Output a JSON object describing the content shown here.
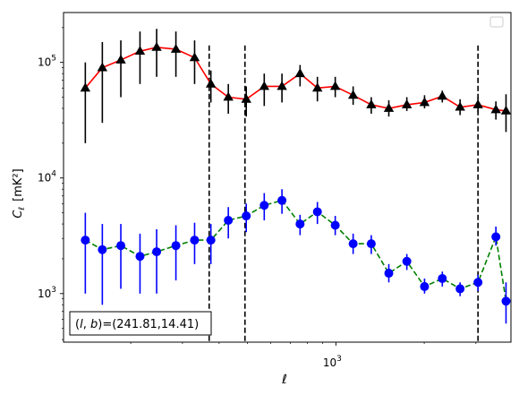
{
  "chart_data": {
    "type": "scatter",
    "title": "",
    "xlabel": "ℓ",
    "ylabel_main": "C",
    "ylabel_sub": "ℓ",
    "ylabel_unit": "[mK²]",
    "xscale": "log",
    "yscale": "log",
    "xlim": [
      118,
      3950
    ],
    "ylim": [
      380,
      270000
    ],
    "x_tick_label": "10",
    "x_tick_exp": "3",
    "y_tick_labels": [
      {
        "value": 1000,
        "base": "10",
        "exp": "3"
      },
      {
        "value": 10000,
        "base": "10",
        "exp": "4"
      },
      {
        "value": 100000,
        "base": "10",
        "exp": "5"
      }
    ],
    "legend": {
      "placement": "top-right",
      "entries": []
    },
    "vlines": [
      370,
      490,
      3050
    ],
    "annotation_text": "(l, b)=(241.81,14.41)",
    "annotation_parts": {
      "open": "(",
      "l": "l",
      "sep": ", ",
      "b": "b",
      "close": ")",
      "rest": "=(241.81,14.41)"
    },
    "colors": {
      "upper_line": "#ff0000",
      "upper_marker": "#000000",
      "lower_line": "#008000",
      "lower_marker": "#0000ff"
    },
    "series": [
      {
        "line_style": "solid",
        "marker": "triangle",
        "points": [
          {
            "x": 140,
            "y": 60000,
            "lo": 20000,
            "hi": 100000
          },
          {
            "x": 160,
            "y": 90000,
            "lo": 30000,
            "hi": 150000
          },
          {
            "x": 185,
            "y": 105000,
            "lo": 50000,
            "hi": 155000
          },
          {
            "x": 215,
            "y": 125000,
            "lo": 65000,
            "hi": 185000
          },
          {
            "x": 245,
            "y": 135000,
            "lo": 75000,
            "hi": 195000
          },
          {
            "x": 285,
            "y": 130000,
            "lo": 75000,
            "hi": 185000
          },
          {
            "x": 330,
            "y": 110000,
            "lo": 65000,
            "hi": 155000
          },
          {
            "x": 375,
            "y": 65000,
            "lo": 45000,
            "hi": 85000
          },
          {
            "x": 430,
            "y": 50000,
            "lo": 36000,
            "hi": 65000
          },
          {
            "x": 495,
            "y": 48000,
            "lo": 34000,
            "hi": 62000
          },
          {
            "x": 570,
            "y": 62000,
            "lo": 42000,
            "hi": 80000
          },
          {
            "x": 655,
            "y": 62000,
            "lo": 45000,
            "hi": 80000
          },
          {
            "x": 755,
            "y": 80000,
            "lo": 62000,
            "hi": 95000
          },
          {
            "x": 865,
            "y": 60000,
            "lo": 46000,
            "hi": 75000
          },
          {
            "x": 995,
            "y": 62000,
            "lo": 50000,
            "hi": 75000
          },
          {
            "x": 1145,
            "y": 52000,
            "lo": 43000,
            "hi": 62000
          },
          {
            "x": 1320,
            "y": 43000,
            "lo": 36000,
            "hi": 50000
          },
          {
            "x": 1515,
            "y": 40000,
            "lo": 34000,
            "hi": 47000
          },
          {
            "x": 1745,
            "y": 43000,
            "lo": 38000,
            "hi": 50000
          },
          {
            "x": 2005,
            "y": 45000,
            "lo": 40000,
            "hi": 52000
          },
          {
            "x": 2305,
            "y": 51000,
            "lo": 45000,
            "hi": 57000
          },
          {
            "x": 2650,
            "y": 41000,
            "lo": 35000,
            "hi": 48000
          },
          {
            "x": 3050,
            "y": 43000,
            "lo": 37000,
            "hi": 50000
          },
          {
            "x": 3510,
            "y": 39000,
            "lo": 32000,
            "hi": 46000
          },
          {
            "x": 3800,
            "y": 38000,
            "lo": 25000,
            "hi": 53000
          }
        ]
      },
      {
        "line_style": "dashed",
        "marker": "circle",
        "points": [
          {
            "x": 140,
            "y": 2900,
            "lo": 1000,
            "hi": 5000
          },
          {
            "x": 160,
            "y": 2400,
            "lo": 800,
            "hi": 4000
          },
          {
            "x": 185,
            "y": 2600,
            "lo": 1100,
            "hi": 4000
          },
          {
            "x": 215,
            "y": 2100,
            "lo": 1000,
            "hi": 3300
          },
          {
            "x": 245,
            "y": 2300,
            "lo": 1000,
            "hi": 3600
          },
          {
            "x": 285,
            "y": 2600,
            "lo": 1300,
            "hi": 3900
          },
          {
            "x": 330,
            "y": 2900,
            "lo": 1800,
            "hi": 4100
          },
          {
            "x": 375,
            "y": 2900,
            "lo": 1800,
            "hi": 4000
          },
          {
            "x": 430,
            "y": 4300,
            "lo": 3000,
            "hi": 5600
          },
          {
            "x": 495,
            "y": 4700,
            "lo": 3400,
            "hi": 6000
          },
          {
            "x": 570,
            "y": 5800,
            "lo": 4300,
            "hi": 7400
          },
          {
            "x": 655,
            "y": 6400,
            "lo": 4900,
            "hi": 8000
          },
          {
            "x": 755,
            "y": 4000,
            "lo": 3200,
            "hi": 4800
          },
          {
            "x": 865,
            "y": 5100,
            "lo": 4000,
            "hi": 6200
          },
          {
            "x": 995,
            "y": 3900,
            "lo": 3200,
            "hi": 4700
          },
          {
            "x": 1145,
            "y": 2700,
            "lo": 2200,
            "hi": 3300
          },
          {
            "x": 1320,
            "y": 2700,
            "lo": 2200,
            "hi": 3200
          },
          {
            "x": 1515,
            "y": 1500,
            "lo": 1250,
            "hi": 1800
          },
          {
            "x": 1745,
            "y": 1900,
            "lo": 1600,
            "hi": 2200
          },
          {
            "x": 2005,
            "y": 1150,
            "lo": 1000,
            "hi": 1350
          },
          {
            "x": 2305,
            "y": 1350,
            "lo": 1150,
            "hi": 1550
          },
          {
            "x": 2650,
            "y": 1100,
            "lo": 950,
            "hi": 1250
          },
          {
            "x": 3050,
            "y": 1250,
            "lo": 1050,
            "hi": 1450
          },
          {
            "x": 3510,
            "y": 3100,
            "lo": 2600,
            "hi": 3800
          },
          {
            "x": 3800,
            "y": 860,
            "lo": 550,
            "hi": 1250
          }
        ]
      }
    ]
  }
}
